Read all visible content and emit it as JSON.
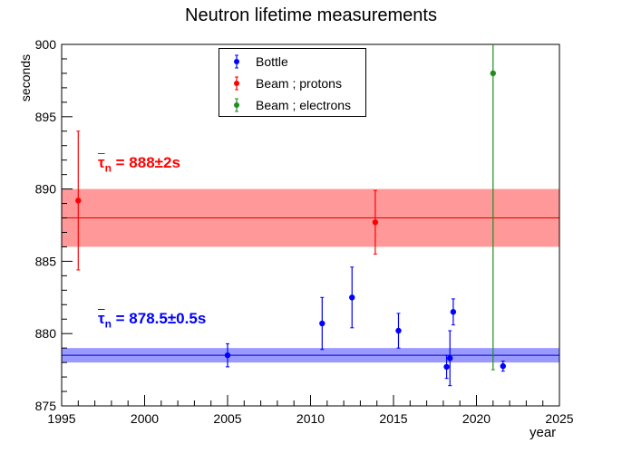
{
  "chart_data": {
    "type": "scatter",
    "title": "Neutron lifetime measurements",
    "xlabel": "year",
    "ylabel": "seconds",
    "xlim": [
      1995,
      2025
    ],
    "ylim": [
      875,
      900
    ],
    "xticks": [
      1995,
      2000,
      2005,
      2010,
      2015,
      2020,
      2025
    ],
    "yticks": [
      875,
      880,
      885,
      890,
      895,
      900
    ],
    "grid": false,
    "legend_position": "top-center",
    "series": [
      {
        "name": "Bottle",
        "color": "#0000ff",
        "points": [
          {
            "x": 2005.0,
            "y": 878.5,
            "err": 0.8
          },
          {
            "x": 2010.7,
            "y": 880.7,
            "err": 1.8
          },
          {
            "x": 2012.5,
            "y": 882.5,
            "err": 2.1
          },
          {
            "x": 2015.3,
            "y": 880.2,
            "err": 1.2
          },
          {
            "x": 2018.2,
            "y": 877.7,
            "err": 0.8
          },
          {
            "x": 2018.4,
            "y": 878.3,
            "err": 1.9
          },
          {
            "x": 2018.6,
            "y": 881.5,
            "err": 0.9
          },
          {
            "x": 2021.6,
            "y": 877.75,
            "err": 0.35
          }
        ]
      },
      {
        "name": "Beam ; protons",
        "color": "#ff0000",
        "points": [
          {
            "x": 1996.0,
            "y": 889.2,
            "err": 4.8
          },
          {
            "x": 2013.9,
            "y": 887.7,
            "err": 2.2
          }
        ]
      },
      {
        "name": "Beam ; electrons",
        "color": "#228b22",
        "points": [
          {
            "x": 2021.0,
            "y": 898.0,
            "err": 20.5
          }
        ]
      }
    ],
    "bands": [
      {
        "label_prefix": "τ",
        "label_sub": "n",
        "label_text": " = 888±2s",
        "center": 888.0,
        "low": 886.0,
        "high": 890.0,
        "fill": "#ff9999",
        "line": "#e00000",
        "text_color": "#ff0000"
      },
      {
        "label_prefix": "τ",
        "label_sub": "n",
        "label_text": " = 878.5±0.5s",
        "center": 878.5,
        "low": 878.0,
        "high": 879.0,
        "fill": "#9999ff",
        "line": "#0000cc",
        "text_color": "#0000ff"
      }
    ]
  }
}
